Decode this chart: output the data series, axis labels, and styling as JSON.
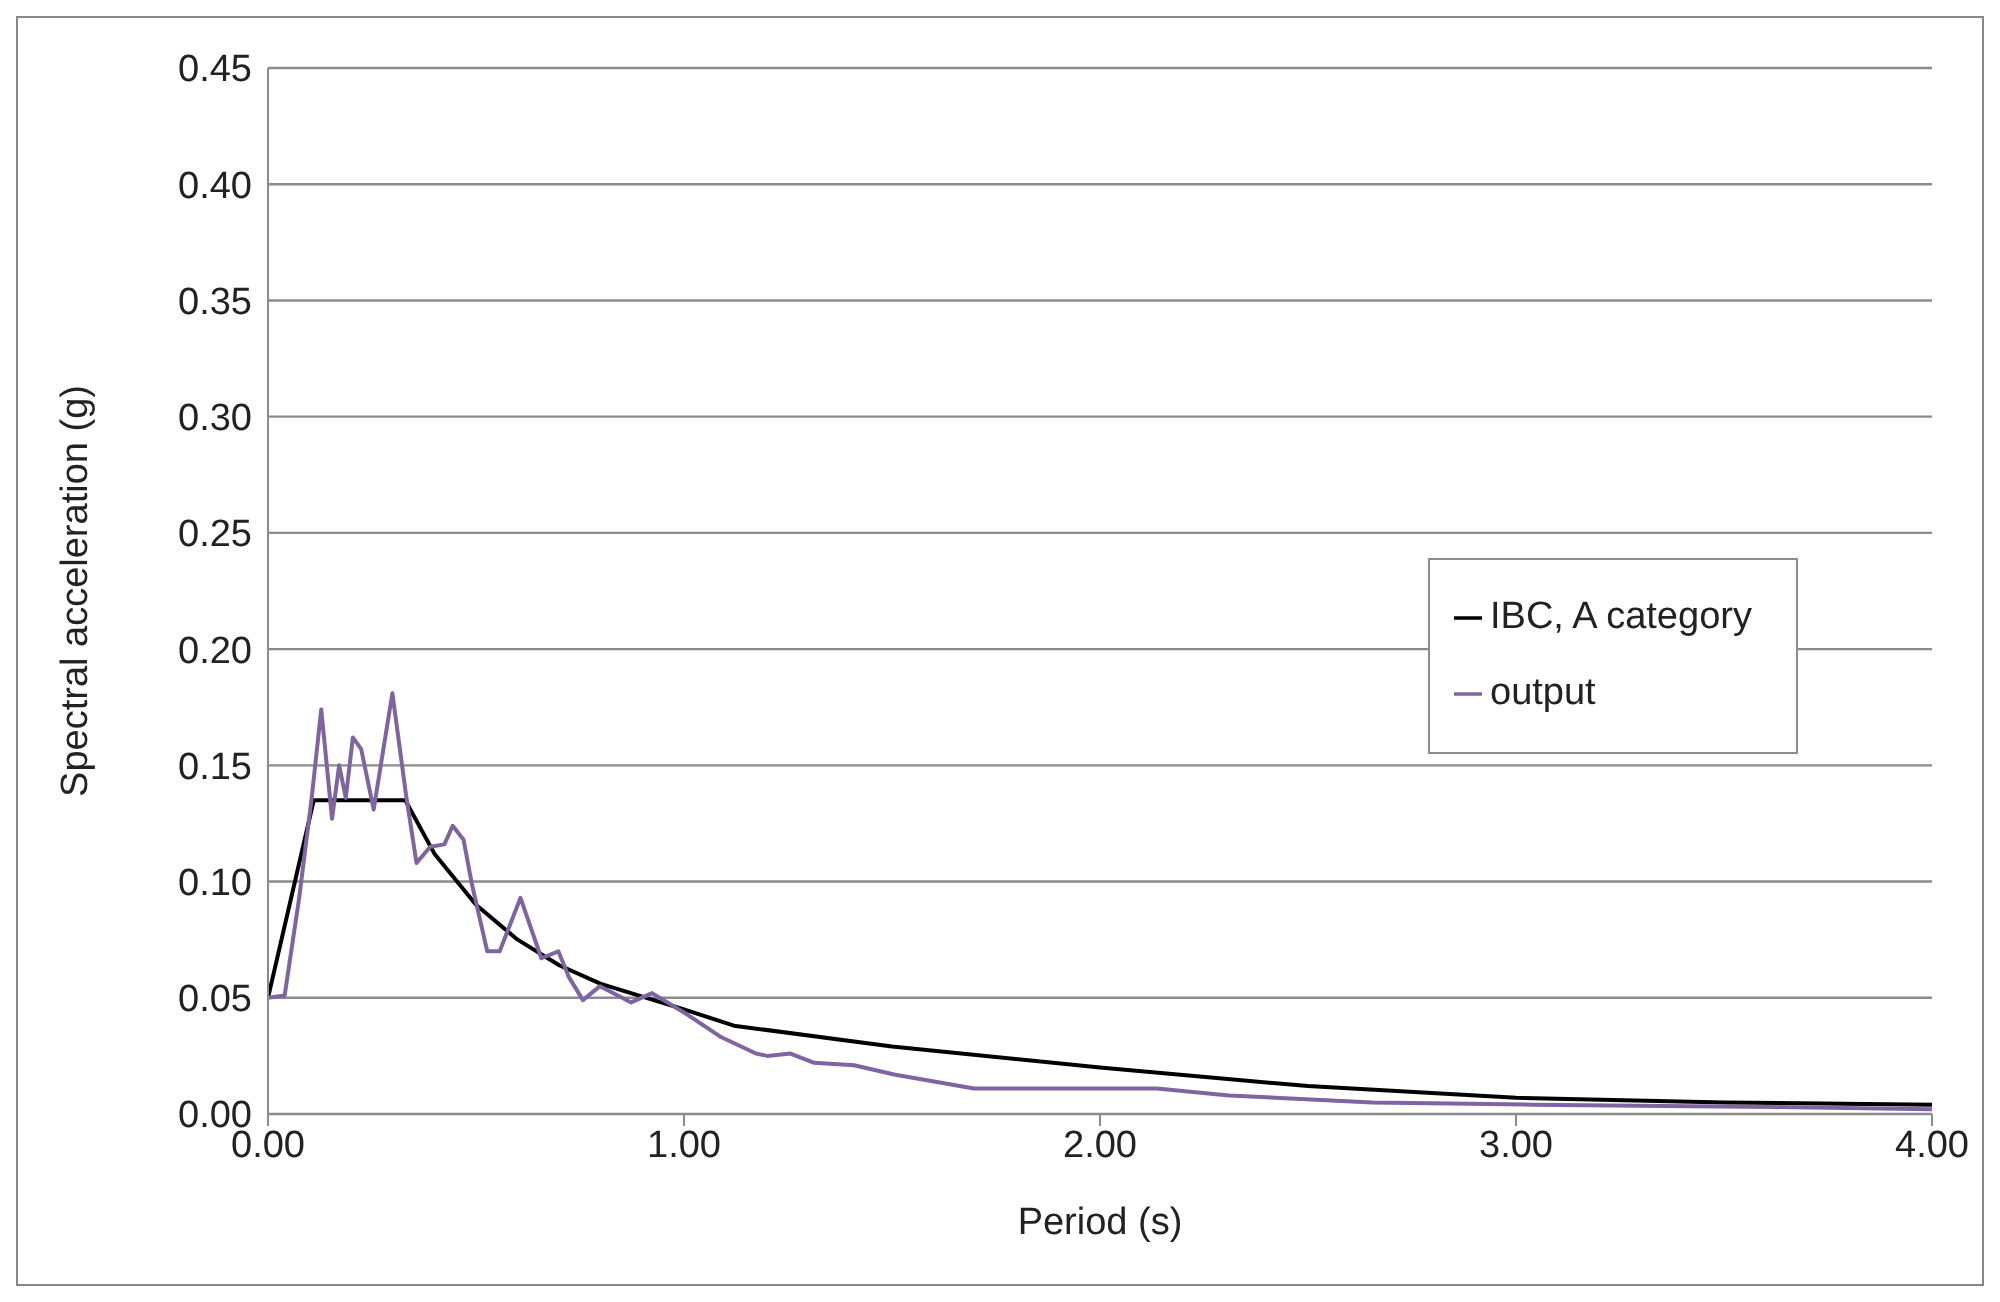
{
  "chart_data": {
    "type": "line",
    "xlabel": "Period (s)",
    "ylabel": "Spectral acceleration (g)",
    "xlim": [
      0,
      4
    ],
    "xticks": [
      {
        "value": 0,
        "label": "0.00"
      },
      {
        "value": 1,
        "label": "1.00"
      },
      {
        "value": 2,
        "label": "2.00"
      },
      {
        "value": 3,
        "label": "3.00"
      },
      {
        "value": 4,
        "label": "4.00"
      }
    ],
    "ylim": [
      0,
      0.45
    ],
    "yticks": [
      {
        "value": 0,
        "label": "0.00"
      },
      {
        "value": 0.05,
        "label": "0.05"
      },
      {
        "value": 0.1,
        "label": "0.10"
      },
      {
        "value": 0.15,
        "label": "0.15"
      },
      {
        "value": 0.2,
        "label": "0.20"
      },
      {
        "value": 0.25,
        "label": "0.25"
      },
      {
        "value": 0.3,
        "label": "0.30"
      },
      {
        "value": 0.35,
        "label": "0.35"
      },
      {
        "value": 0.4,
        "label": "0.40"
      },
      {
        "value": 0.45,
        "label": "0.45"
      }
    ],
    "grid": "y",
    "legend": "right",
    "marker": "none",
    "line_style": "solid",
    "series": [
      {
        "name": "IBC, A category",
        "color": "#000000",
        "x": [
          0,
          0.11,
          0.33,
          0.4,
          0.5,
          0.6,
          0.7,
          0.8,
          1.0,
          1.12,
          1.5,
          2.0,
          2.5,
          3.0,
          3.5,
          4.0
        ],
        "values": [
          0.05,
          0.135,
          0.135,
          0.112,
          0.09,
          0.075,
          0.064,
          0.056,
          0.045,
          0.038,
          0.029,
          0.02,
          0.012,
          0.007,
          0.005,
          0.004
        ]
      },
      {
        "name": "output",
        "color": "#8064a2",
        "x": [
          0,
          0.04,
          0.075,
          0.105,
          0.128,
          0.154,
          0.171,
          0.187,
          0.204,
          0.224,
          0.254,
          0.299,
          0.332,
          0.357,
          0.39,
          0.424,
          0.444,
          0.47,
          0.49,
          0.527,
          0.557,
          0.607,
          0.657,
          0.698,
          0.723,
          0.757,
          0.798,
          0.873,
          0.923,
          1.006,
          1.09,
          1.173,
          1.2,
          1.256,
          1.313,
          1.409,
          1.505,
          1.697,
          2.137,
          2.31,
          2.655,
          3.04,
          3.615,
          4.0
        ],
        "values": [
          0.05,
          0.051,
          0.093,
          0.136,
          0.174,
          0.127,
          0.15,
          0.136,
          0.162,
          0.157,
          0.131,
          0.181,
          0.137,
          0.108,
          0.115,
          0.116,
          0.124,
          0.118,
          0.099,
          0.07,
          0.07,
          0.093,
          0.067,
          0.07,
          0.059,
          0.049,
          0.055,
          0.048,
          0.052,
          0.043,
          0.033,
          0.026,
          0.025,
          0.026,
          0.022,
          0.021,
          0.017,
          0.011,
          0.011,
          0.008,
          0.005,
          0.004,
          0.003,
          0.002
        ]
      }
    ]
  }
}
